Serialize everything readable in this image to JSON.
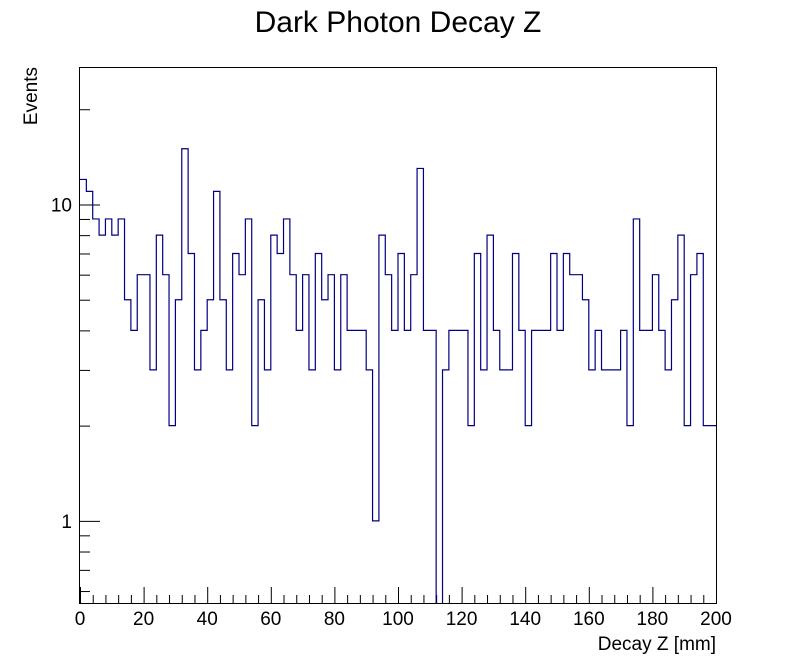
{
  "chart_data": {
    "type": "histogram",
    "title": "Dark Photon Decay Z",
    "xlabel": "Decay Z [mm]",
    "ylabel": "Events",
    "xlim": [
      0,
      200
    ],
    "ylim": [
      0.55,
      27
    ],
    "yscale": "log",
    "grid": false,
    "line_color": "#000080",
    "bin_width": 2,
    "x_tick_labels": [
      "0",
      "20",
      "40",
      "60",
      "80",
      "100",
      "120",
      "140",
      "160",
      "180",
      "200"
    ],
    "y_tick_labels": [
      "1",
      "10"
    ],
    "y_tick_values": [
      1,
      10
    ],
    "values": [
      12,
      11,
      9,
      8,
      9,
      8,
      9,
      5,
      4,
      6,
      6,
      3,
      8,
      6,
      2,
      5,
      15,
      7,
      3,
      4,
      5,
      11,
      5,
      3,
      7,
      6,
      9,
      2,
      5,
      3,
      8,
      7,
      9,
      6,
      4,
      6,
      3,
      7,
      5,
      6,
      3,
      6,
      4,
      4,
      4,
      3,
      1,
      8,
      6,
      4,
      7,
      4,
      6,
      13,
      4,
      4,
      0,
      3,
      4,
      4,
      4,
      2,
      7,
      3,
      8,
      4,
      3,
      3,
      7,
      4,
      2,
      4,
      4,
      4,
      7,
      4,
      7,
      6,
      6,
      5,
      3,
      4,
      3,
      3,
      3,
      4,
      2,
      9,
      4,
      4,
      6,
      4,
      3,
      5,
      8,
      2,
      6,
      7,
      2,
      2
    ]
  }
}
